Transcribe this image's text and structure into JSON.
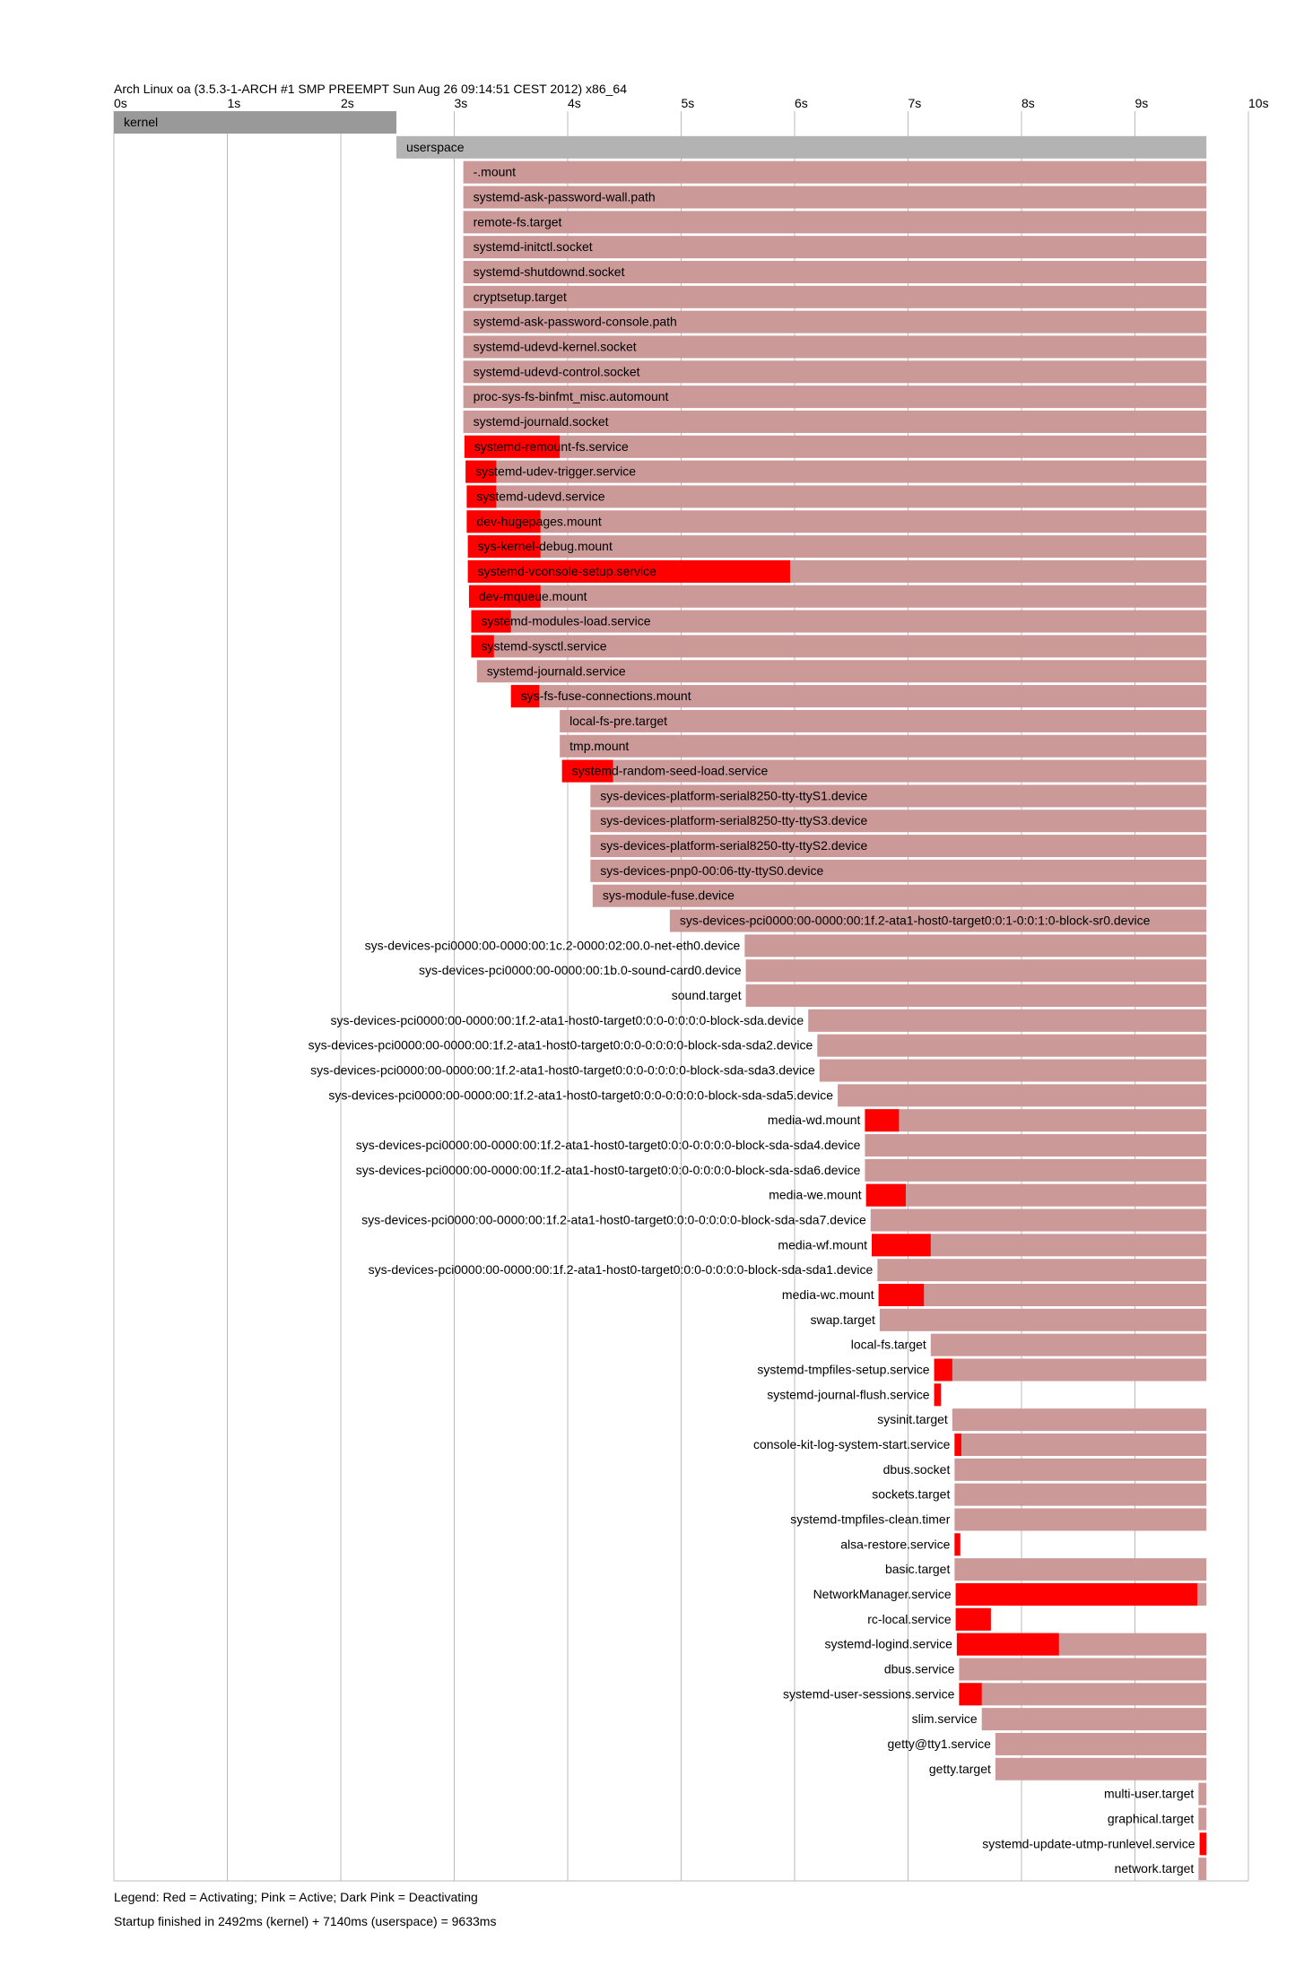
{
  "header": "Arch Linux oa (3.5.3-1-ARCH #1 SMP PREEMPT Sun Aug 26 09:14:51 CEST 2012) x86_64",
  "legend": "Legend: Red = Activating; Pink = Active; Dark Pink = Deactivating",
  "summary": "Startup finished in 2492ms (kernel) + 7140ms (userspace) = 9633ms",
  "colors": {
    "activating": "#ff0000",
    "active": "#cc9999",
    "kernel": "#999999",
    "userspace": "#b3b3b3",
    "grid": "#bbbbbb"
  },
  "chart_data": {
    "type": "gantt",
    "xunit": "s",
    "xlim": [
      0,
      10
    ],
    "xticks": [
      "0s",
      "1s",
      "2s",
      "3s",
      "4s",
      "5s",
      "6s",
      "7s",
      "8s",
      "9s",
      "10s"
    ],
    "rows": [
      {
        "name": "kernel",
        "start": 0,
        "end": 2.49,
        "kind": "kernel"
      },
      {
        "name": "userspace",
        "start": 2.49,
        "end": 9.63,
        "kind": "userspace"
      },
      {
        "name": "-.mount",
        "start": 3.08,
        "end": 9.63
      },
      {
        "name": "systemd-ask-password-wall.path",
        "start": 3.08,
        "end": 9.63
      },
      {
        "name": "remote-fs.target",
        "start": 3.08,
        "end": 9.63
      },
      {
        "name": "systemd-initctl.socket",
        "start": 3.08,
        "end": 9.63
      },
      {
        "name": "systemd-shutdownd.socket",
        "start": 3.08,
        "end": 9.63
      },
      {
        "name": "cryptsetup.target",
        "start": 3.08,
        "end": 9.63
      },
      {
        "name": "systemd-ask-password-console.path",
        "start": 3.08,
        "end": 9.63
      },
      {
        "name": "systemd-udevd-kernel.socket",
        "start": 3.08,
        "end": 9.63
      },
      {
        "name": "systemd-udevd-control.socket",
        "start": 3.08,
        "end": 9.63
      },
      {
        "name": "proc-sys-fs-binfmt_misc.automount",
        "start": 3.08,
        "end": 9.63
      },
      {
        "name": "systemd-journald.socket",
        "start": 3.08,
        "end": 9.63
      },
      {
        "name": "systemd-remount-fs.service",
        "start": 3.09,
        "end": 9.63,
        "act": 3.93
      },
      {
        "name": "systemd-udev-trigger.service",
        "start": 3.1,
        "end": 9.63,
        "act": 3.37
      },
      {
        "name": "systemd-udevd.service",
        "start": 3.11,
        "end": 9.63,
        "act": 3.37
      },
      {
        "name": "dev-hugepages.mount",
        "start": 3.11,
        "end": 9.63,
        "act": 3.76
      },
      {
        "name": "sys-kernel-debug.mount",
        "start": 3.12,
        "end": 9.63,
        "act": 3.76
      },
      {
        "name": "systemd-vconsole-setup.service",
        "start": 3.12,
        "end": 9.63,
        "act": 5.96
      },
      {
        "name": "dev-mqueue.mount",
        "start": 3.13,
        "end": 9.63,
        "act": 3.76
      },
      {
        "name": "systemd-modules-load.service",
        "start": 3.15,
        "end": 9.63,
        "act": 3.5
      },
      {
        "name": "systemd-sysctl.service",
        "start": 3.15,
        "end": 9.63,
        "act": 3.35
      },
      {
        "name": "systemd-journald.service",
        "start": 3.2,
        "end": 9.63
      },
      {
        "name": "sys-fs-fuse-connections.mount",
        "start": 3.5,
        "end": 9.63,
        "act": 3.75
      },
      {
        "name": "local-fs-pre.target",
        "start": 3.93,
        "end": 9.63
      },
      {
        "name": "tmp.mount",
        "start": 3.93,
        "end": 9.63
      },
      {
        "name": "systemd-random-seed-load.service",
        "start": 3.95,
        "end": 9.63,
        "act": 4.4
      },
      {
        "name": "sys-devices-platform-serial8250-tty-ttyS1.device",
        "start": 4.2,
        "end": 9.63
      },
      {
        "name": "sys-devices-platform-serial8250-tty-ttyS3.device",
        "start": 4.2,
        "end": 9.63
      },
      {
        "name": "sys-devices-platform-serial8250-tty-ttyS2.device",
        "start": 4.2,
        "end": 9.63
      },
      {
        "name": "sys-devices-pnp0-00:06-tty-ttyS0.device",
        "start": 4.2,
        "end": 9.63
      },
      {
        "name": "sys-module-fuse.device",
        "start": 4.22,
        "end": 9.63
      },
      {
        "name": "sys-devices-pci0000:00-0000:00:1f.2-ata1-host0-target0:0:1-0:0:1:0-block-sr0.device",
        "start": 4.9,
        "end": 9.63
      },
      {
        "name": "sys-devices-pci0000:00-0000:00:1c.2-0000:02:00.0-net-eth0.device",
        "start": 5.56,
        "end": 9.63
      },
      {
        "name": "sys-devices-pci0000:00-0000:00:1b.0-sound-card0.device",
        "start": 5.57,
        "end": 9.63
      },
      {
        "name": "sound.target",
        "start": 5.57,
        "end": 9.63
      },
      {
        "name": "sys-devices-pci0000:00-0000:00:1f.2-ata1-host0-target0:0:0-0:0:0:0-block-sda.device",
        "start": 6.12,
        "end": 9.63
      },
      {
        "name": "sys-devices-pci0000:00-0000:00:1f.2-ata1-host0-target0:0:0-0:0:0:0-block-sda-sda2.device",
        "start": 6.2,
        "end": 9.63
      },
      {
        "name": "sys-devices-pci0000:00-0000:00:1f.2-ata1-host0-target0:0:0-0:0:0:0-block-sda-sda3.device",
        "start": 6.22,
        "end": 9.63
      },
      {
        "name": "sys-devices-pci0000:00-0000:00:1f.2-ata1-host0-target0:0:0-0:0:0:0-block-sda-sda5.device",
        "start": 6.38,
        "end": 9.63
      },
      {
        "name": "media-wd.mount",
        "start": 6.62,
        "end": 9.63,
        "act": 6.92
      },
      {
        "name": "sys-devices-pci0000:00-0000:00:1f.2-ata1-host0-target0:0:0-0:0:0:0-block-sda-sda4.device",
        "start": 6.62,
        "end": 9.63
      },
      {
        "name": "sys-devices-pci0000:00-0000:00:1f.2-ata1-host0-target0:0:0-0:0:0:0-block-sda-sda6.device",
        "start": 6.62,
        "end": 9.63
      },
      {
        "name": "media-we.mount",
        "start": 6.63,
        "end": 9.63,
        "act": 6.98
      },
      {
        "name": "sys-devices-pci0000:00-0000:00:1f.2-ata1-host0-target0:0:0-0:0:0:0-block-sda-sda7.device",
        "start": 6.67,
        "end": 9.63
      },
      {
        "name": "media-wf.mount",
        "start": 6.68,
        "end": 9.63,
        "act": 7.2
      },
      {
        "name": "sys-devices-pci0000:00-0000:00:1f.2-ata1-host0-target0:0:0-0:0:0:0-block-sda-sda1.device",
        "start": 6.73,
        "end": 9.63
      },
      {
        "name": "media-wc.mount",
        "start": 6.74,
        "end": 9.63,
        "act": 7.14
      },
      {
        "name": "swap.target",
        "start": 6.75,
        "end": 9.63
      },
      {
        "name": "local-fs.target",
        "start": 7.2,
        "end": 9.63
      },
      {
        "name": "systemd-tmpfiles-setup.service",
        "start": 7.23,
        "end": 9.63,
        "act": 7.39
      },
      {
        "name": "systemd-journal-flush.service",
        "start": 7.23,
        "end": 7.29,
        "act": 7.29
      },
      {
        "name": "sysinit.target",
        "start": 7.39,
        "end": 9.63
      },
      {
        "name": "console-kit-log-system-start.service",
        "start": 7.41,
        "end": 9.63,
        "act": 7.47
      },
      {
        "name": "dbus.socket",
        "start": 7.41,
        "end": 9.63
      },
      {
        "name": "sockets.target",
        "start": 7.41,
        "end": 9.63
      },
      {
        "name": "systemd-tmpfiles-clean.timer",
        "start": 7.41,
        "end": 9.63
      },
      {
        "name": "alsa-restore.service",
        "start": 7.41,
        "end": 7.46,
        "act": 7.46
      },
      {
        "name": "basic.target",
        "start": 7.41,
        "end": 9.63
      },
      {
        "name": "NetworkManager.service",
        "start": 7.42,
        "end": 9.63,
        "act": 9.55
      },
      {
        "name": "rc-local.service",
        "start": 7.42,
        "end": 7.73,
        "act": 7.73
      },
      {
        "name": "systemd-logind.service",
        "start": 7.43,
        "end": 9.63,
        "act": 8.33
      },
      {
        "name": "dbus.service",
        "start": 7.45,
        "end": 9.63
      },
      {
        "name": "systemd-user-sessions.service",
        "start": 7.45,
        "end": 9.63,
        "act": 7.65
      },
      {
        "name": "slim.service",
        "start": 7.65,
        "end": 9.63
      },
      {
        "name": "getty@tty1.service",
        "start": 7.77,
        "end": 9.63
      },
      {
        "name": "getty.target",
        "start": 7.77,
        "end": 9.63
      },
      {
        "name": "multi-user.target",
        "start": 9.56,
        "end": 9.63
      },
      {
        "name": "graphical.target",
        "start": 9.56,
        "end": 9.63
      },
      {
        "name": "systemd-update-utmp-runlevel.service",
        "start": 9.57,
        "end": 9.63,
        "act": 9.63
      },
      {
        "name": "network.target",
        "start": 9.56,
        "end": 9.63
      }
    ]
  }
}
